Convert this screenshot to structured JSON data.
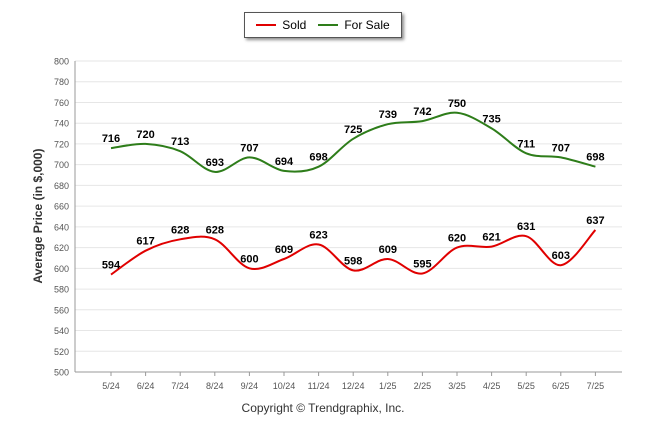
{
  "legend": {
    "sold_label": "Sold",
    "for_sale_label": "For Sale"
  },
  "footer": {
    "copyright": "Copyright © Trendgraphix, Inc."
  },
  "colors": {
    "sold": "#e00000",
    "for_sale": "#2e7d1a",
    "grid": "#e6e6e6",
    "axis": "#999999"
  },
  "chart_data": {
    "type": "line",
    "ylabel": "Average Price (in $,000)",
    "ylim": [
      500,
      800
    ],
    "yticks": [
      500,
      520,
      540,
      560,
      580,
      600,
      620,
      640,
      660,
      680,
      700,
      720,
      740,
      760,
      780,
      800
    ],
    "grid": true,
    "legend_position": "top-center",
    "categories": [
      "5/24",
      "6/24",
      "7/24",
      "8/24",
      "9/24",
      "10/24",
      "11/24",
      "12/24",
      "1/25",
      "2/25",
      "3/25",
      "4/25",
      "5/25",
      "6/25",
      "7/25"
    ],
    "series": [
      {
        "name": "Sold",
        "color": "#e00000",
        "values": [
          594,
          617,
          628,
          628,
          600,
          609,
          623,
          598,
          609,
          595,
          620,
          621,
          631,
          603,
          637
        ]
      },
      {
        "name": "For Sale",
        "color": "#2e7d1a",
        "values": [
          716,
          720,
          713,
          693,
          707,
          694,
          698,
          725,
          739,
          742,
          750,
          735,
          711,
          707,
          698
        ]
      }
    ]
  }
}
